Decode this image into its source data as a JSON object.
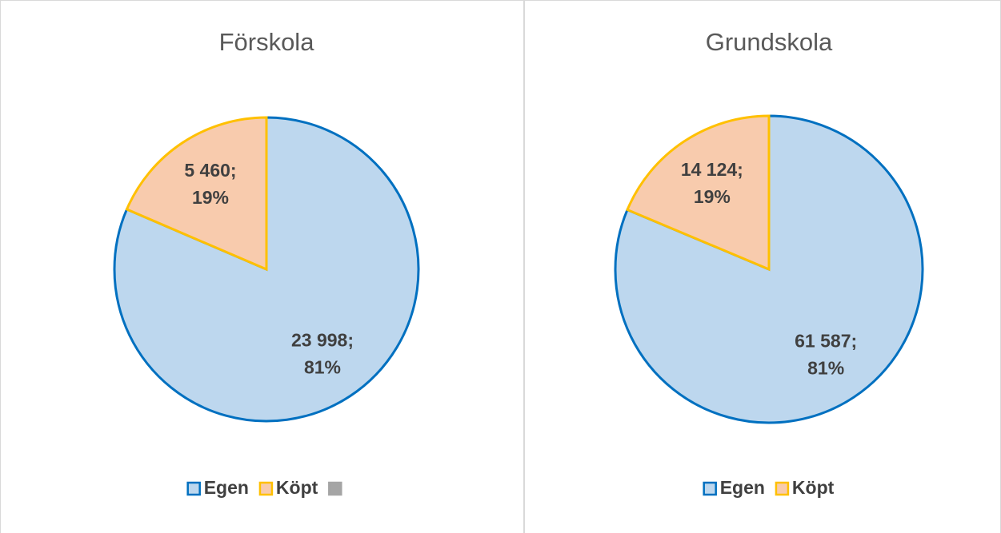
{
  "chart_data": [
    {
      "type": "pie",
      "title": "Förskola",
      "categories": [
        "Egen",
        "Köpt",
        null
      ],
      "values": [
        23998,
        5460,
        null
      ],
      "value_labels": [
        "23 998;",
        "5 460;",
        null
      ],
      "percent_labels": [
        "81%",
        "19%",
        null
      ],
      "colors": [
        "#bdd7ee",
        "#f8cbad",
        "#a5a5a5"
      ],
      "edge_colors": [
        "#0070c0",
        "#ffc000",
        "#a5a5a5"
      ]
    },
    {
      "type": "pie",
      "title": "Grundskola",
      "categories": [
        "Egen",
        "Köpt"
      ],
      "values": [
        61587,
        14124
      ],
      "value_labels": [
        "61 587;",
        "14 124;"
      ],
      "percent_labels": [
        "81%",
        "19%"
      ],
      "colors": [
        "#bdd7ee",
        "#f8cbad"
      ],
      "edge_colors": [
        "#0070c0",
        "#ffc000"
      ]
    }
  ]
}
